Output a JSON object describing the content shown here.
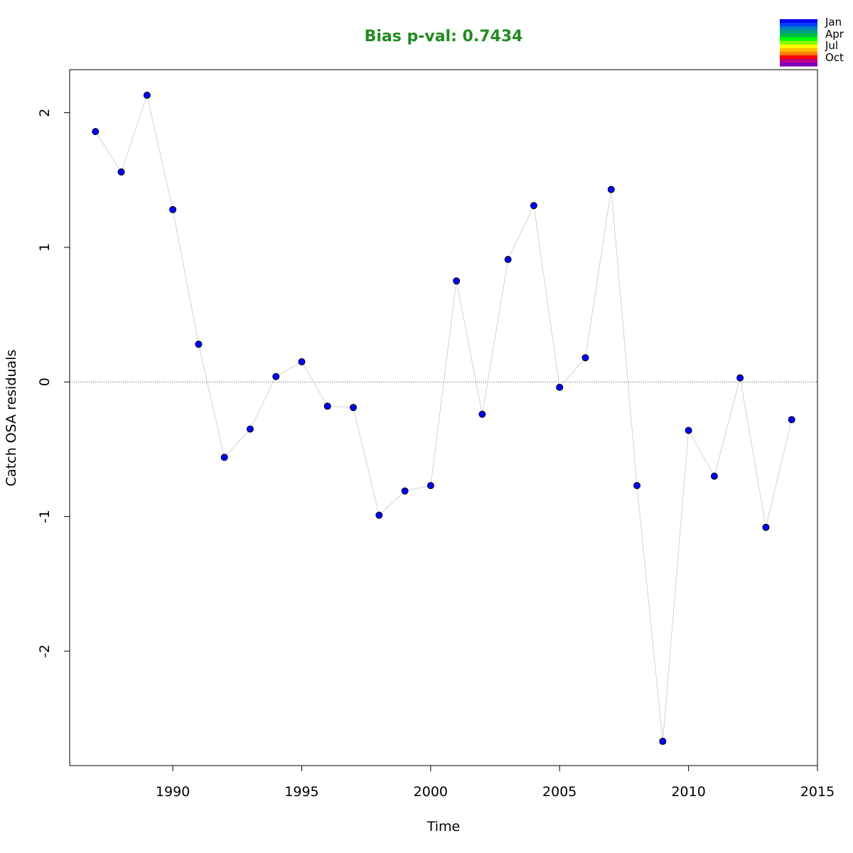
{
  "chart_data": {
    "type": "scatter",
    "title": "Bias p-val: 0.7434",
    "title_color": "#228B22",
    "xlabel": "Time",
    "ylabel": "Catch OSA residuals",
    "xlim": [
      1986,
      2015
    ],
    "ylim": [
      -2.85,
      2.32
    ],
    "xticks": [
      1990,
      1995,
      2000,
      2005,
      2010,
      2015
    ],
    "yticks": [
      -2,
      -1,
      0,
      1,
      2
    ],
    "reference_line": 0,
    "point_color": "#0000FF",
    "line_color": "#D3D3D3",
    "x": [
      1987,
      1988,
      1989,
      1990,
      1991,
      1992,
      1993,
      1994,
      1995,
      1996,
      1997,
      1998,
      1999,
      2000,
      2001,
      2002,
      2003,
      2004,
      2005,
      2006,
      2007,
      2008,
      2009,
      2010,
      2011,
      2012,
      2013,
      2014
    ],
    "values": [
      1.86,
      1.56,
      2.13,
      1.28,
      0.28,
      -0.56,
      -0.35,
      0.04,
      0.15,
      -0.18,
      -0.19,
      -0.99,
      -0.81,
      -0.77,
      0.75,
      -0.24,
      0.91,
      1.31,
      -0.04,
      0.18,
      1.43,
      -0.77,
      -2.67,
      -0.36,
      -0.7,
      0.03,
      -1.08,
      -0.28
    ],
    "legend": {
      "placement": "top-right",
      "labels": [
        "Jan",
        "Apr",
        "Jul",
        "Oct"
      ],
      "colors": [
        "#0000FF",
        "#0040FF",
        "#0080C0",
        "#00A080",
        "#00C040",
        "#00FF00",
        "#80FF00",
        "#FFFF00",
        "#FFC000",
        "#FF8000",
        "#FF0000",
        "#C00080",
        "#8000C0"
      ]
    }
  }
}
